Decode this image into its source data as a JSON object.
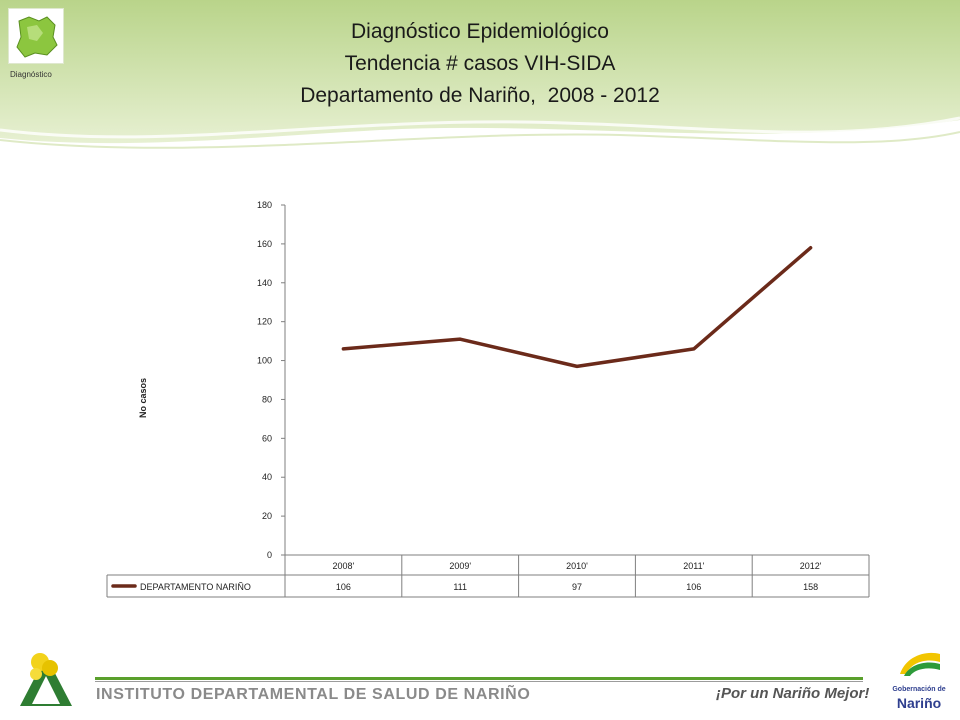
{
  "logo": {
    "caption": "Diagnóstico"
  },
  "title": {
    "line1": "Diagnóstico Epidemiológico",
    "line2": "Tendencia # casos VIH-SIDA",
    "line3": "Departamento de Nariño,  2008 - 2012"
  },
  "chart_data": {
    "type": "line",
    "categories": [
      "2008'",
      "2009'",
      "2010'",
      "2011'",
      "2012'"
    ],
    "series": [
      {
        "name": "DEPARTAMENTO NARIÑO",
        "values": [
          106,
          111,
          97,
          106,
          158
        ],
        "color": "#6b2a1a"
      }
    ],
    "ylabel": "No casos",
    "ylim": [
      0,
      180
    ],
    "yticks": [
      0,
      20,
      40,
      60,
      80,
      100,
      120,
      140,
      160,
      180
    ],
    "grid": false,
    "data_table": true
  },
  "footer": {
    "institute": "INSTITUTO DEPARTAMENTAL DE SALUD DE NARIÑO",
    "slogan": "¡Por un Nariño Mejor!",
    "gob_line1": "Gobernación de",
    "gob_line2": "Nariño"
  },
  "colors": {
    "header_green": "#cfe0a8",
    "accent_green": "#5aa02c",
    "series_brown": "#6b2a1a"
  }
}
